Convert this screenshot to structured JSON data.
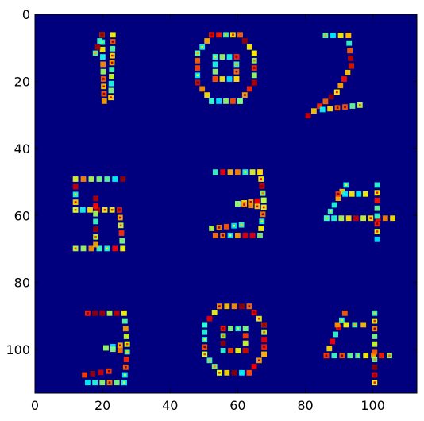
{
  "chart_data": {
    "type": "heatmap",
    "title": "",
    "xlabel": "",
    "ylabel": "",
    "colormap": "jet",
    "xlim": [
      0,
      113
    ],
    "ylim": [
      113,
      0
    ],
    "grid": false,
    "x_ticks": [
      {
        "value": 0,
        "label": "0"
      },
      {
        "value": 20,
        "label": "20"
      },
      {
        "value": 40,
        "label": "40"
      },
      {
        "value": 60,
        "label": "60"
      },
      {
        "value": 80,
        "label": "80"
      },
      {
        "value": 100,
        "label": "100"
      }
    ],
    "y_ticks": [
      {
        "value": 0,
        "label": "0"
      },
      {
        "value": 20,
        "label": "20"
      },
      {
        "value": 40,
        "label": "40"
      },
      {
        "value": 60,
        "label": "60"
      },
      {
        "value": 80,
        "label": "80"
      },
      {
        "value": 100,
        "label": "100"
      }
    ],
    "panels": [
      {
        "glyph": "1",
        "x_range": [
          14,
          27
        ],
        "y_range": [
          5,
          27
        ]
      },
      {
        "glyph": "0",
        "x_range": [
          46,
          67
        ],
        "y_range": [
          5,
          27
        ]
      },
      {
        "glyph": "2",
        "x_range": [
          80,
          97
        ],
        "y_range": [
          5,
          31
        ]
      },
      {
        "glyph": "5",
        "x_range": [
          9,
          29
        ],
        "y_range": [
          48,
          71
        ]
      },
      {
        "glyph": "3",
        "x_range": [
          49,
          71
        ],
        "y_range": [
          46,
          67
        ]
      },
      {
        "glyph": "4",
        "x_range": [
          84,
          107
        ],
        "y_range": [
          50,
          68
        ]
      },
      {
        "glyph": "3",
        "x_range": [
          12,
          30
        ],
        "y_range": [
          88,
          111
        ]
      },
      {
        "glyph": "0",
        "x_range": [
          48,
          70
        ],
        "y_range": [
          86,
          108
        ]
      },
      {
        "glyph": "4",
        "x_range": [
          84,
          106
        ],
        "y_range": [
          88,
          111
        ]
      }
    ]
  }
}
